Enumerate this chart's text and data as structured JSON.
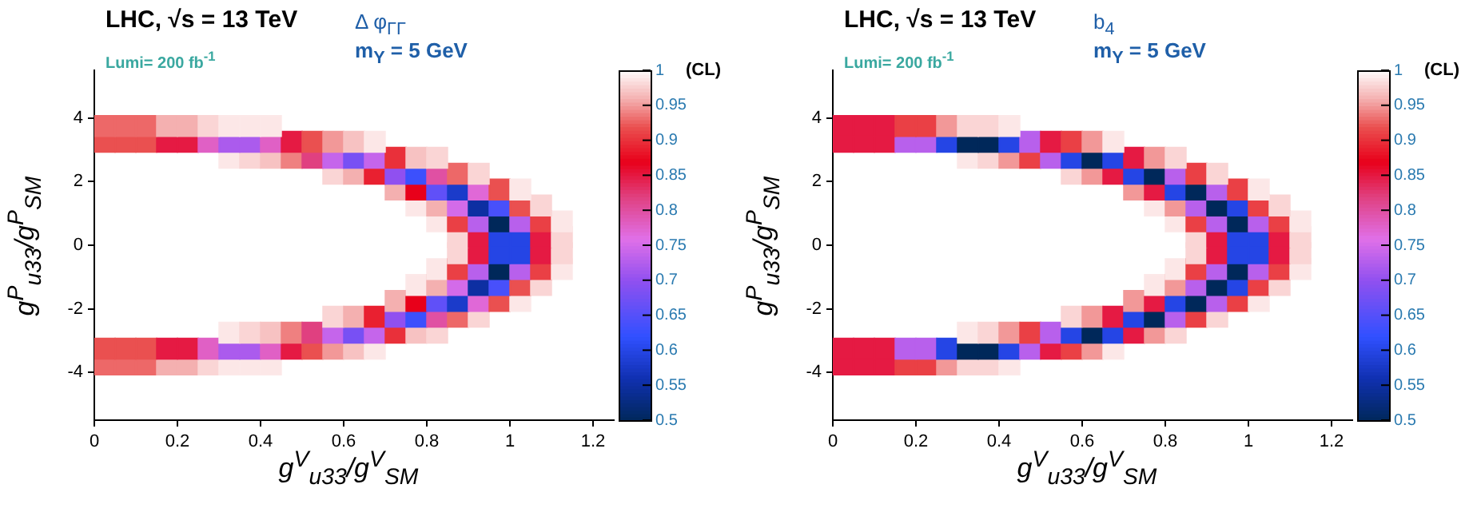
{
  "chart_data": [
    {
      "type": "scatter",
      "title": "LHC, √s = 13 TeV",
      "subtitle": "Lumi= 200 fb$^{-1}$",
      "annotations": [
        "Δ φ$_{ΓΓ}$",
        "m$_{Y}$ = 5 GeV"
      ],
      "xlabel": "g$^{V}$$_{u33}$/g$^{V}$$_{SM}$",
      "ylabel": "g$^{P}$$_{u33}$/g$^{P}$$_{SM}$",
      "clabel": "(CL)",
      "marker": "square",
      "xlim": [
        0,
        1.25
      ],
      "xticks": [
        0,
        0.2,
        0.4,
        0.6,
        0.8,
        1,
        1.2
      ],
      "ylim": [
        -5.5,
        5.5
      ],
      "yticks": [
        -4,
        -2,
        0,
        2,
        4
      ],
      "clim": [
        0.5,
        1
      ],
      "cticks": [
        0.5,
        0.55,
        0.6,
        0.65,
        0.7,
        0.75,
        0.8,
        0.85,
        0.9,
        0.95,
        1
      ],
      "series": [
        {
          "x": [
            0.025,
            0.075,
            0.125,
            0.175,
            0.225,
            0.275,
            0.325,
            0.375,
            0.425
          ],
          "values": [
            3.75,
            3.75,
            3.75,
            3.75,
            3.75,
            3.75,
            3.75,
            3.75,
            3.75
          ],
          "cvalues": [
            0.93,
            0.93,
            0.93,
            0.96,
            0.96,
            0.98,
            0.99,
            0.99,
            0.99
          ],
          "colors": [
            "#ed6868",
            "#ed6868",
            "#ed6868",
            "#f4b0b0",
            "#f4b0b0",
            "#fad5d5",
            "#fce8e8",
            "#fce8e8",
            "#fce8e8"
          ]
        },
        {
          "x": [
            0.025,
            0.075,
            0.125,
            0.175,
            0.225,
            0.275,
            0.325,
            0.375,
            0.425,
            0.475,
            0.525,
            0.575,
            0.625,
            0.675
          ],
          "values": [
            3.25,
            3.25,
            3.25,
            3.25,
            3.25,
            3.25,
            3.25,
            3.25,
            3.25,
            3.25,
            3.25,
            3.25,
            3.25,
            3.25
          ],
          "cvalues": [
            0.92,
            0.92,
            0.92,
            0.85,
            0.85,
            0.78,
            0.72,
            0.72,
            0.78,
            0.85,
            0.92,
            0.95,
            0.97,
            0.99
          ],
          "colors": [
            "#ea5050",
            "#ea5050",
            "#ea5050",
            "#e51a43",
            "#e51a43",
            "#e060c5",
            "#ab5bed",
            "#ab5bed",
            "#e060c5",
            "#e51a43",
            "#ea5050",
            "#f29898",
            "#f7c3c3",
            "#fce8e8"
          ]
        },
        {
          "x": [
            0.325,
            0.375,
            0.425,
            0.475,
            0.525,
            0.575,
            0.625,
            0.675,
            0.725,
            0.775,
            0.825
          ],
          "values": [
            2.75,
            2.75,
            2.75,
            2.75,
            2.75,
            2.75,
            2.75,
            2.75,
            2.75,
            2.75,
            2.75
          ],
          "cvalues": [
            0.99,
            0.98,
            0.97,
            0.94,
            0.82,
            0.74,
            0.68,
            0.74,
            0.9,
            0.97,
            0.98
          ],
          "colors": [
            "#fce8e8",
            "#fad5d5",
            "#f7c3c3",
            "#ef8080",
            "#e04080",
            "#c565eb",
            "#7850f4",
            "#c565eb",
            "#e9303a",
            "#f7c3c3",
            "#fad5d5"
          ]
        },
        {
          "x": [
            0.575,
            0.625,
            0.675,
            0.725,
            0.775,
            0.825,
            0.875,
            0.925
          ],
          "values": [
            2.25,
            2.25,
            2.25,
            2.25,
            2.25,
            2.25,
            2.25,
            2.25
          ],
          "cvalues": [
            0.98,
            0.96,
            0.89,
            0.7,
            0.63,
            0.8,
            0.93,
            0.98
          ],
          "colors": [
            "#fad5d5",
            "#f4b0b0",
            "#e92030",
            "#9050f0",
            "#3c50fd",
            "#e050a3",
            "#ed6868",
            "#fad5d5"
          ]
        },
        {
          "x": [
            0.725,
            0.775,
            0.825,
            0.875,
            0.925,
            0.975,
            1.025
          ],
          "values": [
            1.75,
            1.75,
            1.75,
            1.75,
            1.75,
            1.75,
            1.75
          ],
          "cvalues": [
            0.96,
            0.87,
            0.66,
            0.58,
            0.77,
            0.92,
            0.99
          ],
          "colors": [
            "#f4b0b0",
            "#e8001a",
            "#6050f8",
            "#1b3bca",
            "#e068d7",
            "#ea5050",
            "#fce8e8"
          ]
        },
        {
          "x": [
            0.775,
            0.825,
            0.875,
            0.925,
            0.975,
            1.025,
            1.075
          ],
          "values": [
            1.25,
            1.25,
            1.25,
            1.25,
            1.25,
            1.25,
            1.25
          ],
          "cvalues": [
            0.99,
            0.96,
            0.75,
            0.55,
            0.64,
            0.92,
            0.98
          ],
          "colors": [
            "#fce8e8",
            "#f4b0b0",
            "#d36be9",
            "#0d2fa2",
            "#4850fb",
            "#ea5050",
            "#fad5d5"
          ]
        },
        {
          "x": [
            0.825,
            0.875,
            0.925,
            0.975,
            1.025,
            1.075,
            1.125
          ],
          "values": [
            0.75,
            0.75,
            0.75,
            0.75,
            0.75,
            0.75,
            0.75
          ],
          "cvalues": [
            0.99,
            0.91,
            0.73,
            0.5,
            0.73,
            0.91,
            0.99
          ],
          "colors": [
            "#fce8e8",
            "#ea4045",
            "#b860ec",
            "#00285a",
            "#b860ec",
            "#ea4045",
            "#fce8e8"
          ]
        },
        {
          "x": [
            0.875,
            0.925,
            0.975,
            1.025,
            1.075,
            1.125
          ],
          "values": [
            0.25,
            0.25,
            0.25,
            0.25,
            0.25,
            0.25
          ],
          "cvalues": [
            0.98,
            0.85,
            0.6,
            0.6,
            0.85,
            0.98
          ],
          "colors": [
            "#fad5d5",
            "#e51a43",
            "#2545e5",
            "#2545e5",
            "#e51a43",
            "#fad5d5"
          ]
        },
        {
          "x": [
            0.875,
            0.925,
            0.975,
            1.025,
            1.075,
            1.125
          ],
          "values": [
            -0.25,
            -0.25,
            -0.25,
            -0.25,
            -0.25,
            -0.25
          ],
          "cvalues": [
            0.98,
            0.85,
            0.6,
            0.6,
            0.85,
            0.98
          ],
          "colors": [
            "#fad5d5",
            "#e51a43",
            "#2545e5",
            "#2545e5",
            "#e51a43",
            "#fad5d5"
          ]
        },
        {
          "x": [
            0.825,
            0.875,
            0.925,
            0.975,
            1.025,
            1.075,
            1.125
          ],
          "values": [
            -0.75,
            -0.75,
            -0.75,
            -0.75,
            -0.75,
            -0.75,
            -0.75
          ],
          "cvalues": [
            0.99,
            0.91,
            0.73,
            0.5,
            0.73,
            0.91,
            0.99
          ],
          "colors": [
            "#fce8e8",
            "#ea4045",
            "#b860ec",
            "#00285a",
            "#b860ec",
            "#ea4045",
            "#fce8e8"
          ]
        },
        {
          "x": [
            0.775,
            0.825,
            0.875,
            0.925,
            0.975,
            1.025,
            1.075
          ],
          "values": [
            -1.25,
            -1.25,
            -1.25,
            -1.25,
            -1.25,
            -1.25,
            -1.25
          ],
          "cvalues": [
            0.99,
            0.96,
            0.75,
            0.55,
            0.64,
            0.92,
            0.98
          ],
          "colors": [
            "#fce8e8",
            "#f4b0b0",
            "#d36be9",
            "#0d2fa2",
            "#4850fb",
            "#ea5050",
            "#fad5d5"
          ]
        },
        {
          "x": [
            0.725,
            0.775,
            0.825,
            0.875,
            0.925,
            0.975,
            1.025
          ],
          "values": [
            -1.75,
            -1.75,
            -1.75,
            -1.75,
            -1.75,
            -1.75,
            -1.75
          ],
          "cvalues": [
            0.96,
            0.87,
            0.66,
            0.58,
            0.77,
            0.92,
            0.99
          ],
          "colors": [
            "#f4b0b0",
            "#e8001a",
            "#6050f8",
            "#1b3bca",
            "#e068d7",
            "#ea5050",
            "#fce8e8"
          ]
        },
        {
          "x": [
            0.575,
            0.625,
            0.675,
            0.725,
            0.775,
            0.825,
            0.875,
            0.925
          ],
          "values": [
            -2.25,
            -2.25,
            -2.25,
            -2.25,
            -2.25,
            -2.25,
            -2.25,
            -2.25
          ],
          "cvalues": [
            0.98,
            0.96,
            0.89,
            0.7,
            0.63,
            0.8,
            0.93,
            0.98
          ],
          "colors": [
            "#fad5d5",
            "#f4b0b0",
            "#e92030",
            "#9050f0",
            "#3c50fd",
            "#e050a3",
            "#ed6868",
            "#fad5d5"
          ]
        },
        {
          "x": [
            0.325,
            0.375,
            0.425,
            0.475,
            0.525,
            0.575,
            0.625,
            0.675,
            0.725,
            0.775,
            0.825
          ],
          "values": [
            -2.75,
            -2.75,
            -2.75,
            -2.75,
            -2.75,
            -2.75,
            -2.75,
            -2.75,
            -2.75,
            -2.75,
            -2.75
          ],
          "cvalues": [
            0.99,
            0.98,
            0.97,
            0.94,
            0.82,
            0.74,
            0.68,
            0.74,
            0.9,
            0.97,
            0.98
          ],
          "colors": [
            "#fce8e8",
            "#fad5d5",
            "#f7c3c3",
            "#ef8080",
            "#e04080",
            "#c565eb",
            "#7850f4",
            "#c565eb",
            "#e9303a",
            "#f7c3c3",
            "#fad5d5"
          ]
        },
        {
          "x": [
            0.025,
            0.075,
            0.125,
            0.175,
            0.225,
            0.275,
            0.325,
            0.375,
            0.425,
            0.475,
            0.525,
            0.575,
            0.625,
            0.675
          ],
          "values": [
            -3.25,
            -3.25,
            -3.25,
            -3.25,
            -3.25,
            -3.25,
            -3.25,
            -3.25,
            -3.25,
            -3.25,
            -3.25,
            -3.25,
            -3.25,
            -3.25
          ],
          "cvalues": [
            0.92,
            0.92,
            0.92,
            0.85,
            0.85,
            0.78,
            0.72,
            0.72,
            0.78,
            0.85,
            0.92,
            0.95,
            0.97,
            0.99
          ],
          "colors": [
            "#ea5050",
            "#ea5050",
            "#ea5050",
            "#e51a43",
            "#e51a43",
            "#e060c5",
            "#ab5bed",
            "#ab5bed",
            "#e060c5",
            "#e51a43",
            "#ea5050",
            "#f29898",
            "#f7c3c3",
            "#fce8e8"
          ]
        },
        {
          "x": [
            0.025,
            0.075,
            0.125,
            0.175,
            0.225,
            0.275,
            0.325,
            0.375,
            0.425
          ],
          "values": [
            -3.75,
            -3.75,
            -3.75,
            -3.75,
            -3.75,
            -3.75,
            -3.75,
            -3.75,
            -3.75
          ],
          "cvalues": [
            0.93,
            0.93,
            0.93,
            0.96,
            0.96,
            0.98,
            0.99,
            0.99,
            0.99
          ],
          "colors": [
            "#ed6868",
            "#ed6868",
            "#ed6868",
            "#f4b0b0",
            "#f4b0b0",
            "#fad5d5",
            "#fce8e8",
            "#fce8e8",
            "#fce8e8"
          ]
        }
      ]
    },
    {
      "type": "scatter",
      "title": "LHC, √s = 13 TeV",
      "subtitle": "Lumi= 200 fb$^{-1}$",
      "annotations": [
        "b$_{4}$",
        "m$_{Y}$ = 5 GeV"
      ],
      "xlabel": "g$^{V}$$_{u33}$/g$^{V}$$_{SM}$",
      "ylabel": "g$^{P}$$_{u33}$/g$^{P}$$_{SM}$",
      "clabel": "(CL)",
      "marker": "square",
      "xlim": [
        0,
        1.25
      ],
      "xticks": [
        0,
        0.2,
        0.4,
        0.6,
        0.8,
        1,
        1.2
      ],
      "ylim": [
        -5.5,
        5.5
      ],
      "yticks": [
        -4,
        -2,
        0,
        2,
        4
      ],
      "clim": [
        0.5,
        1
      ],
      "cticks": [
        0.5,
        0.55,
        0.6,
        0.65,
        0.7,
        0.75,
        0.8,
        0.85,
        0.9,
        0.95,
        1
      ],
      "series": [
        {
          "x": [
            0.025,
            0.075,
            0.125,
            0.175,
            0.225,
            0.275,
            0.325,
            0.375,
            0.425
          ],
          "values": [
            3.75,
            3.75,
            3.75,
            3.75,
            3.75,
            3.75,
            3.75,
            3.75,
            3.75
          ],
          "cvalues": [
            0.85,
            0.85,
            0.85,
            0.91,
            0.91,
            0.95,
            0.98,
            0.98,
            0.99
          ],
          "colors": [
            "#e51a43",
            "#e51a43",
            "#e51a43",
            "#ea4045",
            "#ea4045",
            "#f29898",
            "#fad5d5",
            "#fad5d5",
            "#fce8e8"
          ]
        },
        {
          "x": [
            0.025,
            0.075,
            0.125,
            0.175,
            0.225,
            0.275,
            0.325,
            0.375,
            0.425,
            0.475,
            0.525,
            0.575,
            0.625,
            0.675
          ],
          "values": [
            3.25,
            3.25,
            3.25,
            3.25,
            3.25,
            3.25,
            3.25,
            3.25,
            3.25,
            3.25,
            3.25,
            3.25,
            3.25,
            3.25
          ],
          "cvalues": [
            0.85,
            0.85,
            0.85,
            0.73,
            0.73,
            0.6,
            0.5,
            0.5,
            0.6,
            0.73,
            0.85,
            0.91,
            0.95,
            0.99
          ],
          "colors": [
            "#e51a43",
            "#e51a43",
            "#e51a43",
            "#b860ec",
            "#b860ec",
            "#2545e5",
            "#00285a",
            "#00285a",
            "#2545e5",
            "#b860ec",
            "#e51a43",
            "#ea4045",
            "#f29898",
            "#fce8e8"
          ]
        },
        {
          "x": [
            0.325,
            0.375,
            0.425,
            0.475,
            0.525,
            0.575,
            0.625,
            0.675,
            0.725,
            0.775,
            0.825
          ],
          "values": [
            2.75,
            2.75,
            2.75,
            2.75,
            2.75,
            2.75,
            2.75,
            2.75,
            2.75,
            2.75,
            2.75
          ],
          "cvalues": [
            0.99,
            0.98,
            0.95,
            0.91,
            0.73,
            0.6,
            0.5,
            0.6,
            0.85,
            0.95,
            0.98
          ],
          "colors": [
            "#fce8e8",
            "#fad5d5",
            "#f29898",
            "#ea4045",
            "#b860ec",
            "#2545e5",
            "#00285a",
            "#2545e5",
            "#e51a43",
            "#f29898",
            "#fad5d5"
          ]
        },
        {
          "x": [
            0.575,
            0.625,
            0.675,
            0.725,
            0.775,
            0.825,
            0.875,
            0.925
          ],
          "values": [
            2.25,
            2.25,
            2.25,
            2.25,
            2.25,
            2.25,
            2.25,
            2.25
          ],
          "cvalues": [
            0.98,
            0.95,
            0.85,
            0.6,
            0.5,
            0.73,
            0.91,
            0.98
          ],
          "colors": [
            "#fad5d5",
            "#f29898",
            "#e51a43",
            "#2545e5",
            "#00285a",
            "#b860ec",
            "#ea4045",
            "#fad5d5"
          ]
        },
        {
          "x": [
            0.725,
            0.775,
            0.825,
            0.875,
            0.925,
            0.975,
            1.025
          ],
          "values": [
            1.75,
            1.75,
            1.75,
            1.75,
            1.75,
            1.75,
            1.75
          ],
          "cvalues": [
            0.95,
            0.85,
            0.6,
            0.5,
            0.73,
            0.91,
            0.99
          ],
          "colors": [
            "#f29898",
            "#e51a43",
            "#2545e5",
            "#00285a",
            "#b860ec",
            "#ea4045",
            "#fce8e8"
          ]
        },
        {
          "x": [
            0.775,
            0.825,
            0.875,
            0.925,
            0.975,
            1.025,
            1.075
          ],
          "values": [
            1.25,
            1.25,
            1.25,
            1.25,
            1.25,
            1.25,
            1.25
          ],
          "cvalues": [
            0.99,
            0.95,
            0.73,
            0.5,
            0.6,
            0.91,
            0.98
          ],
          "colors": [
            "#fce8e8",
            "#f29898",
            "#b860ec",
            "#00285a",
            "#2545e5",
            "#ea4045",
            "#fad5d5"
          ]
        },
        {
          "x": [
            0.825,
            0.875,
            0.925,
            0.975,
            1.025,
            1.075,
            1.125
          ],
          "values": [
            0.75,
            0.75,
            0.75,
            0.75,
            0.75,
            0.75,
            0.75
          ],
          "cvalues": [
            0.99,
            0.91,
            0.73,
            0.5,
            0.73,
            0.91,
            0.99
          ],
          "colors": [
            "#fce8e8",
            "#ea4045",
            "#b860ec",
            "#00285a",
            "#b860ec",
            "#ea4045",
            "#fce8e8"
          ]
        },
        {
          "x": [
            0.875,
            0.925,
            0.975,
            1.025,
            1.075,
            1.125
          ],
          "values": [
            0.25,
            0.25,
            0.25,
            0.25,
            0.25,
            0.25
          ],
          "cvalues": [
            0.98,
            0.85,
            0.6,
            0.6,
            0.85,
            0.98
          ],
          "colors": [
            "#fad5d5",
            "#e51a43",
            "#2545e5",
            "#2545e5",
            "#e51a43",
            "#fad5d5"
          ]
        },
        {
          "x": [
            0.875,
            0.925,
            0.975,
            1.025,
            1.075,
            1.125
          ],
          "values": [
            -0.25,
            -0.25,
            -0.25,
            -0.25,
            -0.25,
            -0.25
          ],
          "cvalues": [
            0.98,
            0.85,
            0.6,
            0.6,
            0.85,
            0.98
          ],
          "colors": [
            "#fad5d5",
            "#e51a43",
            "#2545e5",
            "#2545e5",
            "#e51a43",
            "#fad5d5"
          ]
        },
        {
          "x": [
            0.825,
            0.875,
            0.925,
            0.975,
            1.025,
            1.075,
            1.125
          ],
          "values": [
            -0.75,
            -0.75,
            -0.75,
            -0.75,
            -0.75,
            -0.75,
            -0.75
          ],
          "cvalues": [
            0.99,
            0.91,
            0.73,
            0.5,
            0.73,
            0.91,
            0.99
          ],
          "colors": [
            "#fce8e8",
            "#ea4045",
            "#b860ec",
            "#00285a",
            "#b860ec",
            "#ea4045",
            "#fce8e8"
          ]
        },
        {
          "x": [
            0.775,
            0.825,
            0.875,
            0.925,
            0.975,
            1.025,
            1.075
          ],
          "values": [
            -1.25,
            -1.25,
            -1.25,
            -1.25,
            -1.25,
            -1.25,
            -1.25
          ],
          "cvalues": [
            0.99,
            0.95,
            0.73,
            0.5,
            0.6,
            0.91,
            0.98
          ],
          "colors": [
            "#fce8e8",
            "#f29898",
            "#b860ec",
            "#00285a",
            "#2545e5",
            "#ea4045",
            "#fad5d5"
          ]
        },
        {
          "x": [
            0.725,
            0.775,
            0.825,
            0.875,
            0.925,
            0.975,
            1.025
          ],
          "values": [
            -1.75,
            -1.75,
            -1.75,
            -1.75,
            -1.75,
            -1.75,
            -1.75
          ],
          "cvalues": [
            0.95,
            0.85,
            0.6,
            0.5,
            0.73,
            0.91,
            0.99
          ],
          "colors": [
            "#f29898",
            "#e51a43",
            "#2545e5",
            "#00285a",
            "#b860ec",
            "#ea4045",
            "#fce8e8"
          ]
        },
        {
          "x": [
            0.575,
            0.625,
            0.675,
            0.725,
            0.775,
            0.825,
            0.875,
            0.925
          ],
          "values": [
            -2.25,
            -2.25,
            -2.25,
            -2.25,
            -2.25,
            -2.25,
            -2.25,
            -2.25
          ],
          "cvalues": [
            0.98,
            0.95,
            0.85,
            0.6,
            0.5,
            0.73,
            0.91,
            0.98
          ],
          "colors": [
            "#fad5d5",
            "#f29898",
            "#e51a43",
            "#2545e5",
            "#00285a",
            "#b860ec",
            "#ea4045",
            "#fad5d5"
          ]
        },
        {
          "x": [
            0.325,
            0.375,
            0.425,
            0.475,
            0.525,
            0.575,
            0.625,
            0.675,
            0.725,
            0.775,
            0.825
          ],
          "values": [
            -2.75,
            -2.75,
            -2.75,
            -2.75,
            -2.75,
            -2.75,
            -2.75,
            -2.75,
            -2.75,
            -2.75,
            -2.75
          ],
          "cvalues": [
            0.99,
            0.98,
            0.95,
            0.91,
            0.73,
            0.6,
            0.5,
            0.6,
            0.85,
            0.95,
            0.98
          ],
          "colors": [
            "#fce8e8",
            "#fad5d5",
            "#f29898",
            "#ea4045",
            "#b860ec",
            "#2545e5",
            "#00285a",
            "#2545e5",
            "#e51a43",
            "#f29898",
            "#fad5d5"
          ]
        },
        {
          "x": [
            0.025,
            0.075,
            0.125,
            0.175,
            0.225,
            0.275,
            0.325,
            0.375,
            0.425,
            0.475,
            0.525,
            0.575,
            0.625,
            0.675
          ],
          "values": [
            -3.25,
            -3.25,
            -3.25,
            -3.25,
            -3.25,
            -3.25,
            -3.25,
            -3.25,
            -3.25,
            -3.25,
            -3.25,
            -3.25,
            -3.25,
            -3.25
          ],
          "cvalues": [
            0.85,
            0.85,
            0.85,
            0.73,
            0.73,
            0.6,
            0.5,
            0.5,
            0.6,
            0.73,
            0.85,
            0.91,
            0.95,
            0.99
          ],
          "colors": [
            "#e51a43",
            "#e51a43",
            "#e51a43",
            "#b860ec",
            "#b860ec",
            "#2545e5",
            "#00285a",
            "#00285a",
            "#2545e5",
            "#b860ec",
            "#e51a43",
            "#ea4045",
            "#f29898",
            "#fce8e8"
          ]
        },
        {
          "x": [
            0.025,
            0.075,
            0.125,
            0.175,
            0.225,
            0.275,
            0.325,
            0.375,
            0.425
          ],
          "values": [
            -3.75,
            -3.75,
            -3.75,
            -3.75,
            -3.75,
            -3.75,
            -3.75,
            -3.75,
            -3.75
          ],
          "cvalues": [
            0.85,
            0.85,
            0.85,
            0.91,
            0.91,
            0.95,
            0.98,
            0.98,
            0.99
          ],
          "colors": [
            "#e51a43",
            "#e51a43",
            "#e51a43",
            "#ea4045",
            "#ea4045",
            "#f29898",
            "#fad5d5",
            "#fad5d5",
            "#fce8e8"
          ]
        }
      ]
    }
  ]
}
